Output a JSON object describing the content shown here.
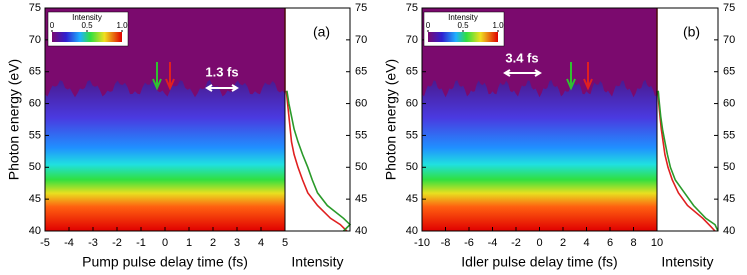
{
  "chart_data": [
    {
      "type": "heatmap",
      "panel_label": "(a)",
      "annotation": "1.3 fs",
      "xlabel": "Pump pulse delay time (fs)",
      "ylabel": "Photon energy (eV)",
      "xlim": [
        -5,
        5
      ],
      "xticks": [
        -5,
        -4,
        -3,
        -2,
        -1,
        0,
        1,
        2,
        3,
        4,
        5
      ],
      "ylim": [
        40,
        75
      ],
      "yticks": [
        40,
        45,
        50,
        55,
        60,
        65,
        70,
        75
      ],
      "y2lim": [
        40,
        75
      ],
      "y2ticks": [
        40,
        45,
        50,
        55,
        60,
        65,
        70,
        75
      ],
      "colorbar": {
        "label": "Intensity",
        "lim": [
          0,
          1
        ],
        "ticks": [
          0,
          0.5,
          {
            "value": 1,
            "label": "1.0"
          }
        ]
      },
      "side_panel": {
        "xlabel": "Intensity",
        "xlim": [
          0,
          1
        ],
        "energies": [
          62,
          60,
          58,
          56,
          54,
          52,
          50,
          48,
          46,
          44,
          42,
          41,
          40
        ],
        "series": [
          {
            "color": "#e02020",
            "values": [
              0.02,
              0.04,
              0.06,
              0.08,
              0.1,
              0.14,
              0.2,
              0.27,
              0.35,
              0.5,
              0.7,
              0.85,
              0.95
            ]
          },
          {
            "color": "#2a9a2a",
            "values": [
              0.03,
              0.06,
              0.1,
              0.14,
              0.2,
              0.27,
              0.35,
              0.42,
              0.5,
              0.65,
              0.9,
              1.0,
              0.9
            ]
          }
        ]
      }
    },
    {
      "type": "heatmap",
      "panel_label": "(b)",
      "annotation": "3.4 fs",
      "xlabel": "Idler pulse delay time (fs)",
      "ylabel": "Photon energy (eV)",
      "xlim": [
        -10,
        10
      ],
      "xticks": [
        -10,
        -8,
        -6,
        -4,
        -2,
        0,
        2,
        4,
        6,
        8,
        10
      ],
      "ylim": [
        40,
        75
      ],
      "yticks": [
        40,
        45,
        50,
        55,
        60,
        65,
        70,
        75
      ],
      "y2lim": [
        40,
        75
      ],
      "y2ticks": [
        40,
        45,
        50,
        55,
        60,
        65,
        70,
        75
      ],
      "colorbar": {
        "label": "Intensity",
        "lim": [
          0,
          1
        ],
        "ticks": [
          0,
          0.5,
          {
            "value": 1,
            "label": "1.0"
          }
        ]
      },
      "side_panel": {
        "xlabel": "Intensity",
        "xlim": [
          0,
          1
        ],
        "energies": [
          62,
          60,
          58,
          56,
          54,
          52,
          50,
          48,
          46,
          44,
          42,
          41,
          40
        ],
        "series": [
          {
            "color": "#e02020",
            "values": [
              0.02,
              0.03,
              0.05,
              0.07,
              0.1,
              0.13,
              0.18,
              0.25,
              0.35,
              0.5,
              0.75,
              0.85,
              0.95
            ]
          },
          {
            "color": "#2a9a2a",
            "values": [
              0.02,
              0.04,
              0.06,
              0.09,
              0.13,
              0.17,
              0.22,
              0.3,
              0.45,
              0.6,
              0.8,
              0.95,
              1.0
            ]
          }
        ]
      }
    }
  ]
}
